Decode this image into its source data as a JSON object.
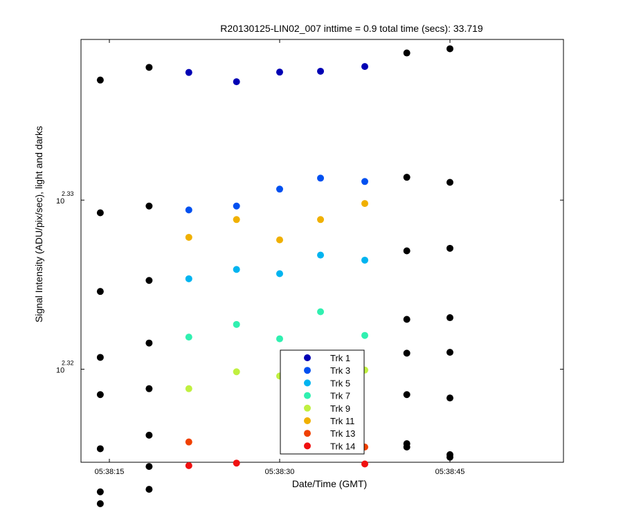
{
  "chart_data": {
    "type": "scatter",
    "title": "R20130125-LIN02_007 inttime = 0.9 total time (secs): 33.719",
    "xlabel": "Date/Time (GMT)",
    "ylabel": "Signal Intensity (ADU/pix/sec), light and darks",
    "x_ticks": [
      "05:38:15",
      "05:38:30",
      "05:38:45"
    ],
    "x_tick_seconds": [
      15,
      30,
      45
    ],
    "xlim": [
      12.5,
      55
    ],
    "y_scale": "log",
    "y_ticks": [
      {
        "base": "10",
        "exp": "2.32",
        "value_exp": 2.32
      },
      {
        "base": "10",
        "exp": "2.33",
        "value_exp": 2.33
      }
    ],
    "ylim_exp": [
      2.3145,
      2.3395
    ],
    "grid": false,
    "legend_position": "bottom-center",
    "x_times": [
      14.2,
      18.5,
      22.0,
      26.2,
      30.0,
      33.6,
      37.5,
      41.2,
      45.0
    ],
    "series": [
      {
        "name": "Trk 1",
        "color": "#0000b4",
        "y_exp": [
          null,
          null,
          2.33755,
          2.337,
          2.33757,
          2.33762,
          2.3379,
          null,
          null
        ]
      },
      {
        "name": "Trk 3",
        "color": "#0050f0",
        "y_exp": [
          null,
          null,
          2.32942,
          2.32965,
          2.33065,
          2.3313,
          2.3311,
          null,
          null
        ]
      },
      {
        "name": "Trk 5",
        "color": "#00b4f0",
        "y_exp": [
          null,
          null,
          2.32535,
          2.3259,
          2.32565,
          2.32675,
          2.32645,
          null,
          null
        ]
      },
      {
        "name": "Trk 7",
        "color": "#30f0b0",
        "y_exp": [
          null,
          null,
          2.3219,
          2.32265,
          2.3218,
          2.3234,
          2.322,
          null,
          null
        ]
      },
      {
        "name": "Trk 9",
        "color": "#c0f040",
        "y_exp": [
          null,
          null,
          2.31885,
          2.31985,
          2.3196,
          2.31995,
          2.31995,
          null,
          null
        ]
      },
      {
        "name": "Trk 11",
        "color": "#f0b000",
        "y_exp": [
          null,
          null,
          2.3278,
          2.32885,
          2.32765,
          2.32885,
          2.3298,
          null,
          null
        ]
      },
      {
        "name": "Trk 13",
        "color": "#f04000",
        "y_exp": [
          null,
          null,
          2.3157,
          null,
          null,
          null,
          2.3154,
          null,
          null
        ]
      },
      {
        "name": "Trk 14",
        "color": "#f01010",
        "y_exp": [
          null,
          null,
          2.3143,
          2.31445,
          null,
          null,
          2.3144,
          null,
          null
        ]
      }
    ],
    "dark_series": {
      "color": "#000000",
      "points": [
        {
          "t": 14.2,
          "y_exp": [
            2.3371,
            2.32925,
            2.3246,
            2.3207,
            2.3185,
            2.3153,
            2.31275,
            2.31205
          ]
        },
        {
          "t": 18.5,
          "y_exp": [
            2.33785,
            2.32965,
            2.32525,
            2.32155,
            2.31885,
            2.3161,
            2.31425,
            2.3129
          ]
        },
        {
          "t": 41.2,
          "y_exp": [
            2.3387,
            2.33135,
            2.327,
            2.32295,
            2.32095,
            2.3185,
            2.3156,
            2.3154
          ]
        },
        {
          "t": 45.0,
          "y_exp": [
            2.33895,
            2.33105,
            2.32715,
            2.32305,
            2.321,
            2.3183,
            2.31495,
            2.3148
          ]
        }
      ]
    }
  }
}
